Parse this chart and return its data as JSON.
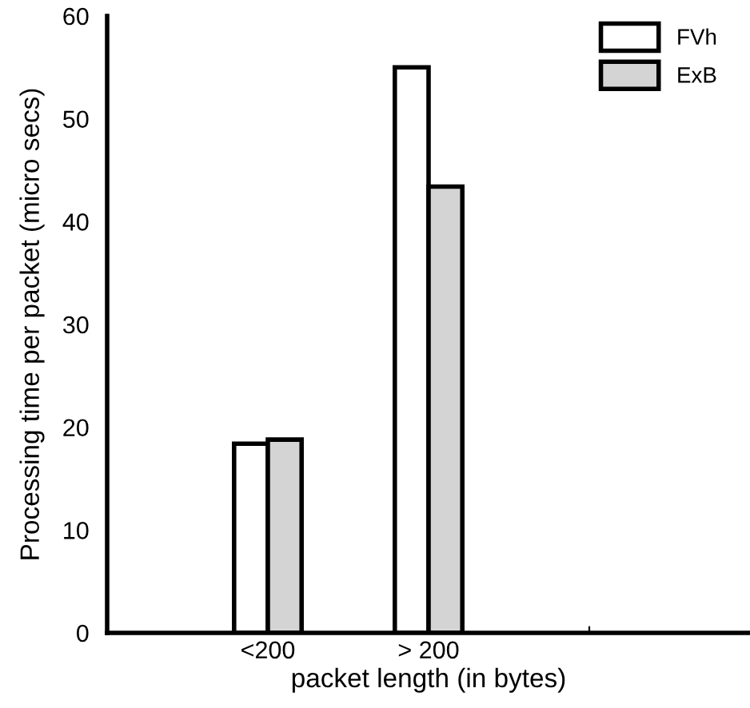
{
  "chart_data": {
    "type": "bar",
    "xlabel": "packet length (in bytes)",
    "ylabel": "Processing time per packet (micro secs)",
    "categories": [
      "<200",
      "> 200",
      null
    ],
    "series": [
      {
        "name": "FVh",
        "color": "#ffffff",
        "values": [
          18.4,
          55,
          null
        ]
      },
      {
        "name": "ExB",
        "color": "#d4d4d4",
        "values": [
          18.8,
          43.4,
          null
        ]
      }
    ],
    "ylim": [
      0,
      60
    ],
    "yticks": [
      0,
      10,
      20,
      30,
      40,
      50,
      60
    ],
    "grid": false,
    "legend": "top right"
  }
}
